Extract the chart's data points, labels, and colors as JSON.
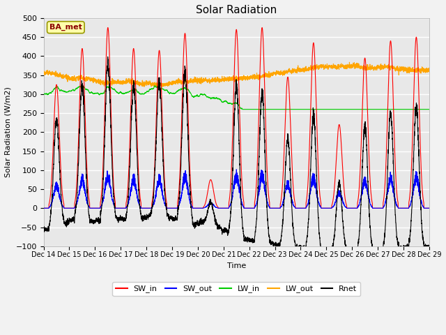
{
  "title": "Solar Radiation",
  "ylabel": "Solar Radiation (W/m2)",
  "xlabel": "Time",
  "ylim": [
    -100,
    500
  ],
  "xlim": [
    0,
    360
  ],
  "annotation": "BA_met",
  "legend_entries": [
    "SW_in",
    "SW_out",
    "LW_in",
    "LW_out",
    "Rnet"
  ],
  "legend_colors": [
    "#ff0000",
    "#0000ff",
    "#00cc00",
    "#ffa500",
    "#000000"
  ],
  "background_color": "#e8e8e8",
  "grid_color": "#ffffff",
  "xtick_labels": [
    "Dec 14",
    "Dec 15",
    "Dec 16",
    "Dec 17",
    "Dec 18",
    "Dec 19",
    "Dec 20",
    "Dec 21",
    "Dec 22",
    "Dec 23",
    "Dec 24",
    "Dec 25",
    "Dec 26",
    "Dec 27",
    "Dec 28",
    "Dec 29"
  ],
  "xtick_positions": [
    0,
    24,
    48,
    72,
    96,
    120,
    144,
    168,
    192,
    216,
    240,
    264,
    288,
    312,
    336,
    360
  ],
  "ytick_vals": [
    -100,
    -50,
    0,
    50,
    100,
    150,
    200,
    250,
    300,
    350,
    400,
    450,
    500
  ]
}
